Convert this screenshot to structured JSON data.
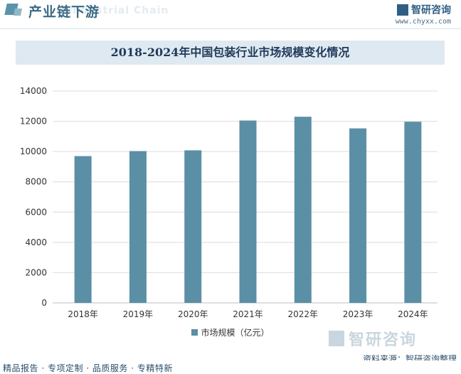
{
  "header": {
    "section_title": "产业链下游",
    "section_bg_text": "Industrial Chain",
    "logo_name": "智研咨询",
    "logo_url": "www.chyxx.com"
  },
  "chart_data": {
    "type": "bar",
    "title": "2018-2024年中国包装行业市场规模变化情况",
    "categories": [
      "2018年",
      "2019年",
      "2020年",
      "2021年",
      "2022年",
      "2023年",
      "2024年"
    ],
    "series": [
      {
        "name": "市场规模（亿元）",
        "values": [
          9700,
          10030,
          10080,
          12050,
          12300,
          11530,
          11970
        ]
      }
    ],
    "ylim": [
      0,
      14000
    ],
    "yticks": [
      0,
      2000,
      4000,
      6000,
      8000,
      10000,
      12000,
      14000
    ],
    "ytick_labels": [
      "0",
      "2000",
      "4000",
      "6000",
      "8000",
      "10000",
      "12000",
      "14000"
    ],
    "xlabel": "",
    "ylabel": "",
    "grid": true,
    "legend_position": "bottom",
    "bar_color": "#5b8fa6"
  },
  "legend": {
    "label": "市场规模（亿元）"
  },
  "watermark": {
    "name": "智研咨询"
  },
  "source": "资料来源：智研咨询整理",
  "footer": {
    "text": "精品报告 · 专项定制 · 品质服务 · 专精特新"
  }
}
